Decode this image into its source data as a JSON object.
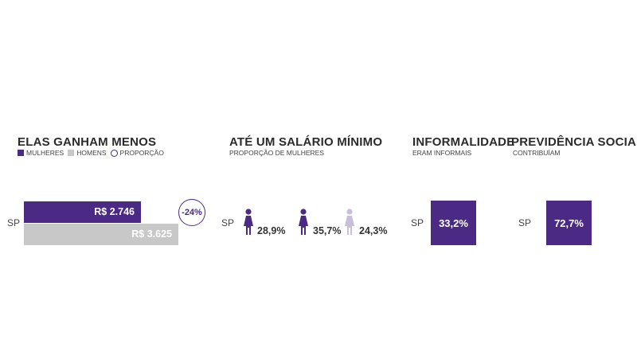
{
  "colors": {
    "purple": "#4b2a85",
    "gray": "#c8c8c8",
    "light_purple": "#c9bfdd"
  },
  "salary": {
    "title": "ELAS GANHAM MENOS",
    "legend": [
      {
        "label": "MULHERES",
        "marker": "square",
        "color": "#4b2a85"
      },
      {
        "label": "HOMENS",
        "marker": "square",
        "color": "#c8c8c8"
      },
      {
        "label": "PROPORÇÃO",
        "marker": "circle",
        "color": "#4b2a85"
      }
    ],
    "region": "SP",
    "proportion_label": "-24%"
  },
  "min_wage": {
    "title": "ATÉ UM SALÁRIO MÍNIMO",
    "subtitle": "PROPORÇÃO DE MULHERES",
    "region": "SP",
    "figure_icons": [
      "woman-icon",
      "woman-icon",
      "woman-icon"
    ]
  },
  "informality": {
    "title": "INFORMALIDADE",
    "subtitle": "ERAM INFORMAIS",
    "region": "SP",
    "value_label": "33,2%"
  },
  "social_security": {
    "title": "PREVIDÊNCIA SOCIAL",
    "subtitle": "CONTRIBUÍAM",
    "region": "SP",
    "value_label": "72,7%"
  },
  "chart_data": [
    {
      "type": "bar",
      "title": "ELAS GANHAM MENOS",
      "categories": [
        "SP"
      ],
      "series": [
        {
          "name": "MULHERES",
          "values": [
            2746
          ],
          "label": "R$ 2.746",
          "color": "#4b2a85"
        },
        {
          "name": "HOMENS",
          "values": [
            3625
          ],
          "label": "R$ 3.625",
          "color": "#c8c8c8"
        }
      ],
      "proportion": -24,
      "xlim": [
        0,
        3625
      ]
    },
    {
      "type": "table",
      "title": "ATÉ UM SALÁRIO MÍNIMO",
      "subtitle": "PROPORÇÃO DE MULHERES",
      "categories": [
        "SP"
      ],
      "values": [
        28.9,
        35.7,
        24.3
      ],
      "labels": [
        "28,9%",
        "35,7%",
        "24,3%"
      ],
      "icon_colors": [
        "#4b2a85",
        "#4b2a85",
        "#c9bfdd"
      ]
    }
  ]
}
